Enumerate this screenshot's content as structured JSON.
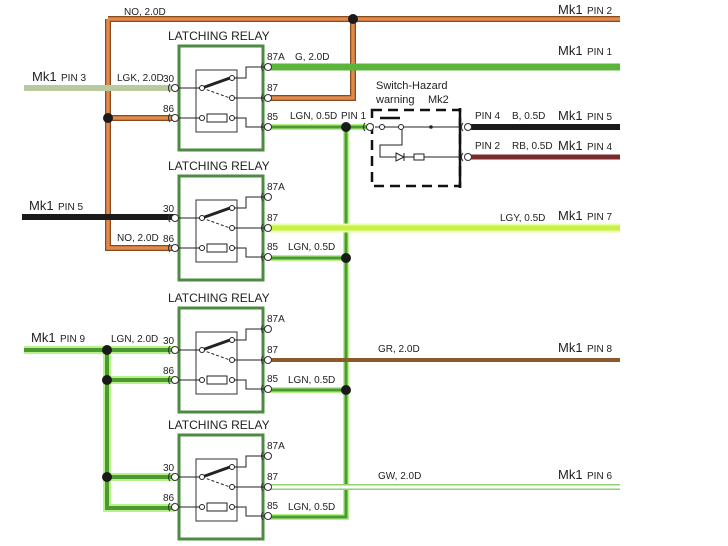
{
  "relay_title": "LATCHING RELAY",
  "relay_pins": {
    "p87a": "87A",
    "p30": "30",
    "p87": "87",
    "p86": "86",
    "p85": "85"
  },
  "connectors": {
    "mk1": "Mk1",
    "pin2": "PIN 2",
    "pin1": "PIN 1",
    "pin3": "PIN 3",
    "pin5": "PIN 5",
    "pin4": "PIN 4",
    "pin7": "PIN 7",
    "pin9": "PIN 9",
    "pin8": "PIN 8",
    "pin6": "PIN 6"
  },
  "wire_labels": {
    "no_top": "NO, 2.0D",
    "g": "G, 2.0D",
    "lgk": "LGK, 2.0D",
    "lgn05": "LGN, 0.5D",
    "relay_pin1": "PIN 1",
    "b": "B, 0.5D",
    "rb": "RB, 0.5D",
    "lgy": "LGY, 0.5D",
    "no_r2": "NO, 2.0D",
    "lgn20": "LGN, 2.0D",
    "gr": "GR, 2.0D",
    "gw": "GW, 2.0D"
  },
  "switch": {
    "title_line1": "Switch-Hazard",
    "title_line2": "warning",
    "mk2": "Mk2",
    "pin4": "PIN 4",
    "pin2": "PIN 2"
  },
  "colors": {
    "orange": "#d2743a",
    "green": "#5ab53a",
    "lgn": "#6cc04a",
    "lgk": "#b9c9a0",
    "lgy": "#c9f04a",
    "black": "#1a1a1a",
    "brown": "#8a5a28",
    "red_black": "#7a2a2a",
    "relay_box": "#4e8a44"
  }
}
